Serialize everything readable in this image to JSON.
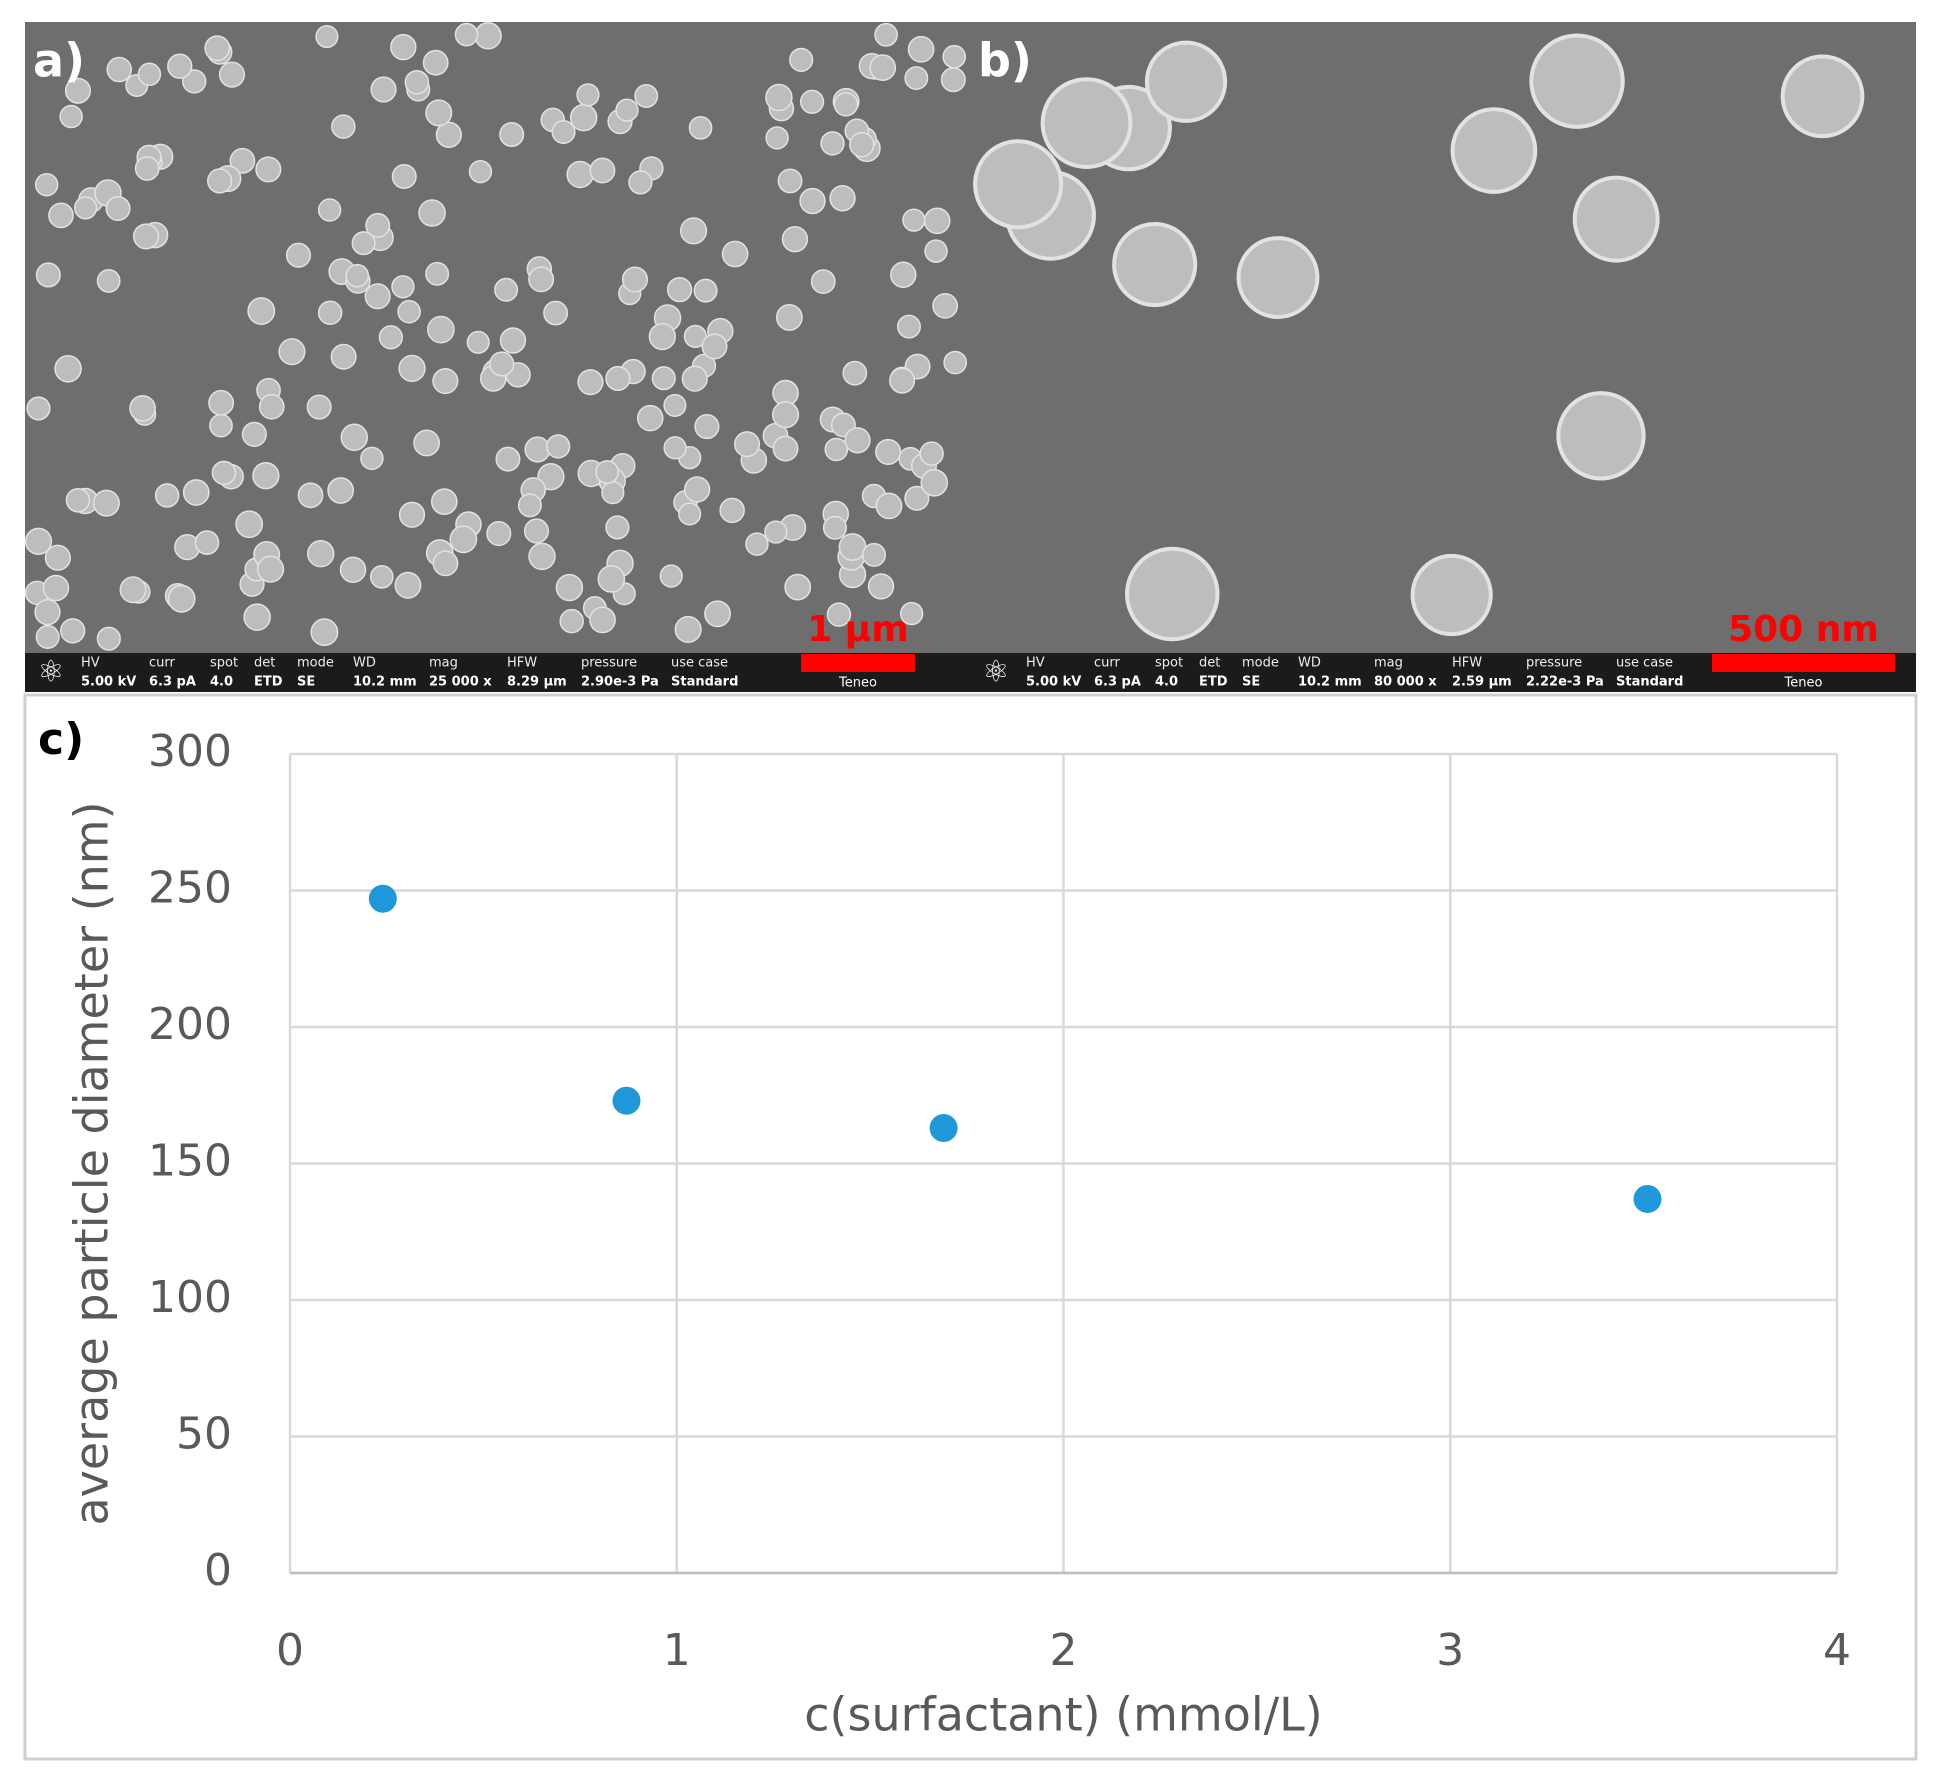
{
  "panels": [
    {
      "label": "a)",
      "scale_bar": "1 µm",
      "brand": "Teneo",
      "info": [
        {
          "label": "HV",
          "value": "5.00 kV"
        },
        {
          "label": "curr",
          "value": "6.3 pA"
        },
        {
          "label": "spot",
          "value": "4.0"
        },
        {
          "label": "det",
          "value": "ETD"
        },
        {
          "label": "mode",
          "value": "SE"
        },
        {
          "label": "WD",
          "value": "10.2 mm"
        },
        {
          "label": "mag",
          "value": "25 000 x"
        },
        {
          "label": "HFW",
          "value": "8.29 µm"
        },
        {
          "label": "pressure",
          "value": "2.90e-3 Pa"
        },
        {
          "label": "use case",
          "value": "Standard"
        }
      ]
    },
    {
      "label": "b)",
      "scale_bar": "500 nm",
      "brand": "Teneo",
      "info": [
        {
          "label": "HV",
          "value": "5.00 kV"
        },
        {
          "label": "curr",
          "value": "6.3 pA"
        },
        {
          "label": "spot",
          "value": "4.0"
        },
        {
          "label": "det",
          "value": "ETD"
        },
        {
          "label": "mode",
          "value": "SE"
        },
        {
          "label": "WD",
          "value": "10.2 mm"
        },
        {
          "label": "mag",
          "value": "80 000 x"
        },
        {
          "label": "HFW",
          "value": "2.59 µm"
        },
        {
          "label": "pressure",
          "value": "2.22e-3 Pa"
        },
        {
          "label": "use case",
          "value": "Standard"
        }
      ]
    }
  ],
  "chart_data": {
    "type": "scatter",
    "panel_label": "c)",
    "x_label": "c(surfactant) (mmol/L)",
    "y_label": "average particle diameter (nm)",
    "x": [
      0.24,
      0.87,
      1.69,
      3.51
    ],
    "values": [
      247,
      173,
      163,
      137
    ],
    "color": "#1f97d8",
    "xlim": [
      0,
      4
    ],
    "xticks": [
      0,
      1,
      2,
      3,
      4
    ],
    "ylim": [
      0,
      300
    ],
    "yticks": [
      0,
      50,
      100,
      150,
      200,
      250,
      300
    ],
    "grid": true
  }
}
